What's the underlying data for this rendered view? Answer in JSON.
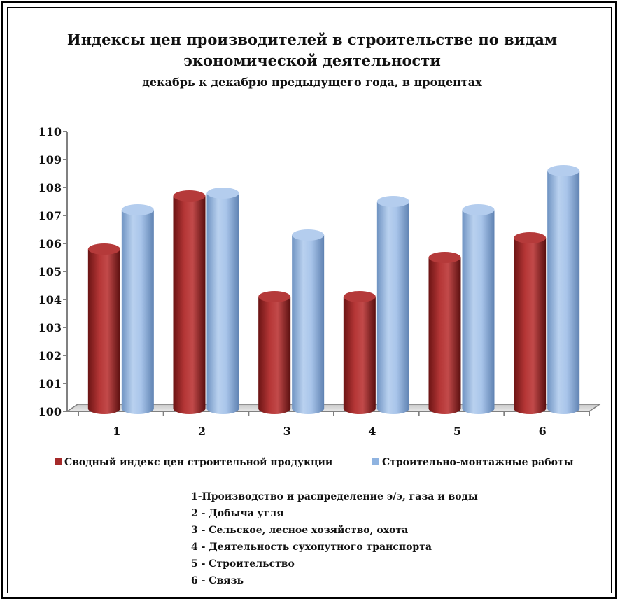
{
  "chart_data": {
    "type": "bar",
    "title": "Индексы цен производителей в строительстве по видам экономической деятельности",
    "title_lines": [
      "Индексы цен производителей в строительстве по видам",
      "экономической деятельности"
    ],
    "subtitle": "декабрь к декабрю предыдущего года, в процентах",
    "categories": [
      "1",
      "2",
      "3",
      "4",
      "5",
      "6"
    ],
    "series": [
      {
        "name": "Сводный индекс цен строительной продукции",
        "color": "#a52a2a",
        "values": [
          105.8,
          107.7,
          104.1,
          104.1,
          105.5,
          106.2
        ]
      },
      {
        "name": "Строительно-монтажные работы",
        "color": "#8fb3e0",
        "values": [
          107.2,
          107.8,
          106.3,
          107.5,
          107.2,
          108.6
        ]
      }
    ],
    "ylim": [
      100,
      110
    ],
    "yticks": [
      "100",
      "101",
      "102",
      "103",
      "104",
      "105",
      "106",
      "107",
      "108",
      "109",
      "110"
    ],
    "xlabel": "",
    "ylabel": "",
    "grid": false,
    "legend_position": "bottom",
    "notes": [
      "1-Производство и распределение э/э, газа и воды",
      "2 - Добыча угля",
      "3 - Сельское, лесное хозяйство, охота",
      "4 - Деятельность сухопутного транспорта",
      "5 - Строительство",
      "6 - Связь"
    ]
  }
}
